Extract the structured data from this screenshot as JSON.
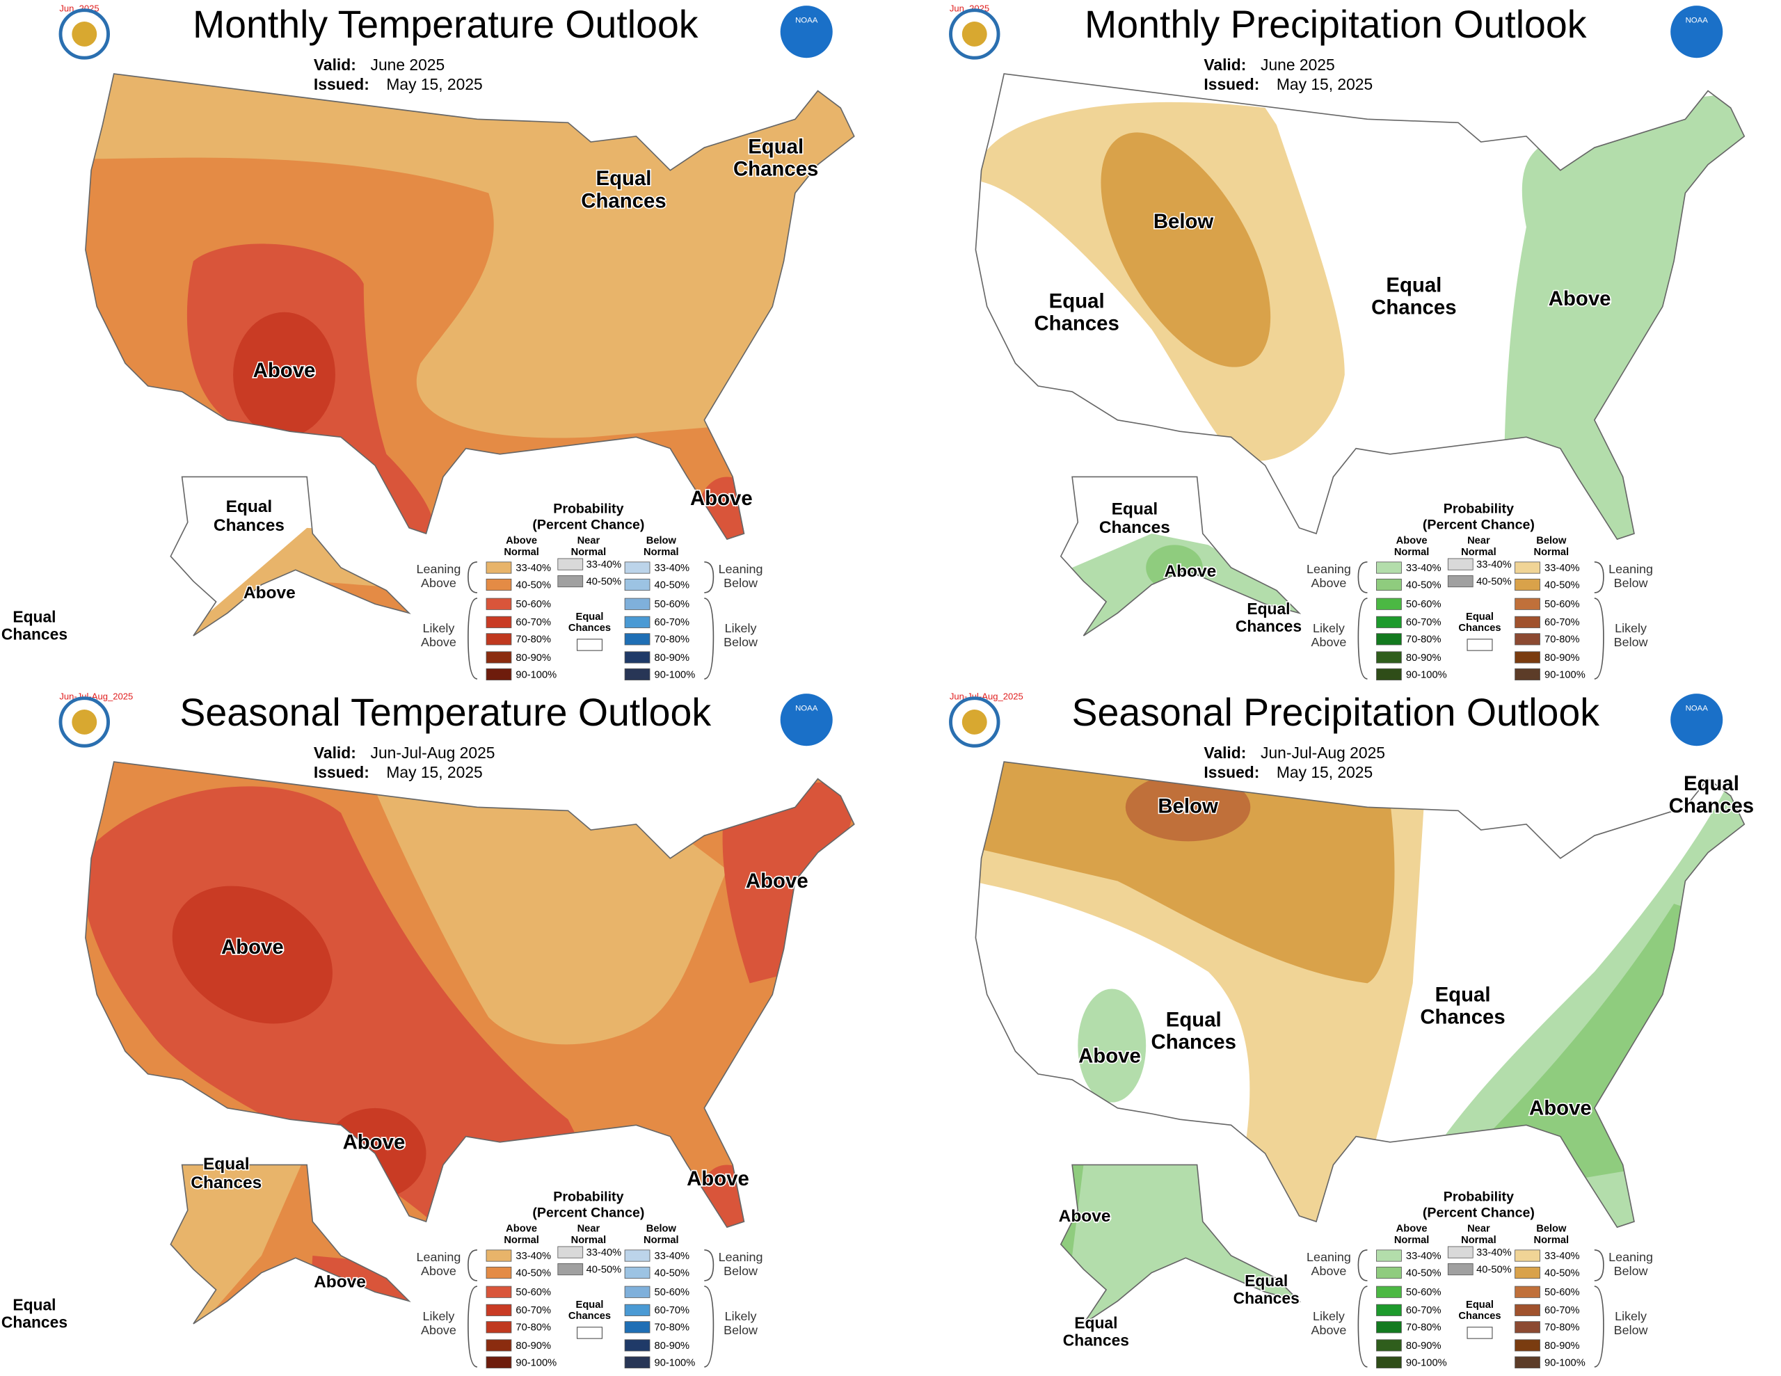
{
  "noaa": "NOAA",
  "legend": {
    "title": "Probability",
    "subtitle": "(Percent Chance)",
    "above": "Above Normal",
    "near": "Near Normal",
    "below": "Below Normal",
    "bins": [
      "33-40%",
      "40-50%",
      "50-60%",
      "60-70%",
      "70-80%",
      "80-90%",
      "90-100%"
    ],
    "near_bins": [
      "33-40%",
      "40-50%"
    ],
    "leaning_above": "Leaning Above",
    "likely_above": "Likely Above",
    "equal": "Equal Chances",
    "leaning_below": "Leaning Below",
    "likely_below": "Likely Below"
  },
  "panels": [
    {
      "tag": "Jun_2025",
      "title": "Monthly Temperature Outlook",
      "valid_label": "Valid:",
      "valid": "June 2025",
      "issued_label": "Issued:",
      "issued": "May 15, 2025",
      "labels": [
        "Above",
        "Equal Chances",
        "Equal Chances",
        "Above",
        "Equal Chances",
        "Above",
        "Equal Chances"
      ]
    },
    {
      "tag": "Jun_2025",
      "title": "Monthly Precipitation Outlook",
      "valid_label": "Valid:",
      "valid": "June 2025",
      "issued_label": "Issued:",
      "issued": "May 15, 2025",
      "labels": [
        "Below",
        "Equal Chances",
        "Equal Chances",
        "Above",
        "Equal Chances",
        "Above",
        "Equal Chances"
      ]
    },
    {
      "tag": "Jun-Jul-Aug_2025",
      "title": "Seasonal Temperature Outlook",
      "valid_label": "Valid:",
      "valid": "Jun-Jul-Aug 2025",
      "issued_label": "Issued:",
      "issued": "May 15, 2025",
      "labels": [
        "Above",
        "Above",
        "Above",
        "Above",
        "Equal Chances",
        "Above",
        "Equal Chances"
      ]
    },
    {
      "tag": "Jun-Jul-Aug_2025",
      "title": "Seasonal Precipitation Outlook",
      "valid_label": "Valid:",
      "valid": "Jun-Jul-Aug 2025",
      "issued_label": "Issued:",
      "issued": "May 15, 2025",
      "labels": [
        "Below",
        "Equal Chances",
        "Equal Chances",
        "Equal Chances",
        "Above",
        "Above",
        "Above",
        "Equal Chances",
        "Equal Chances"
      ]
    }
  ]
}
